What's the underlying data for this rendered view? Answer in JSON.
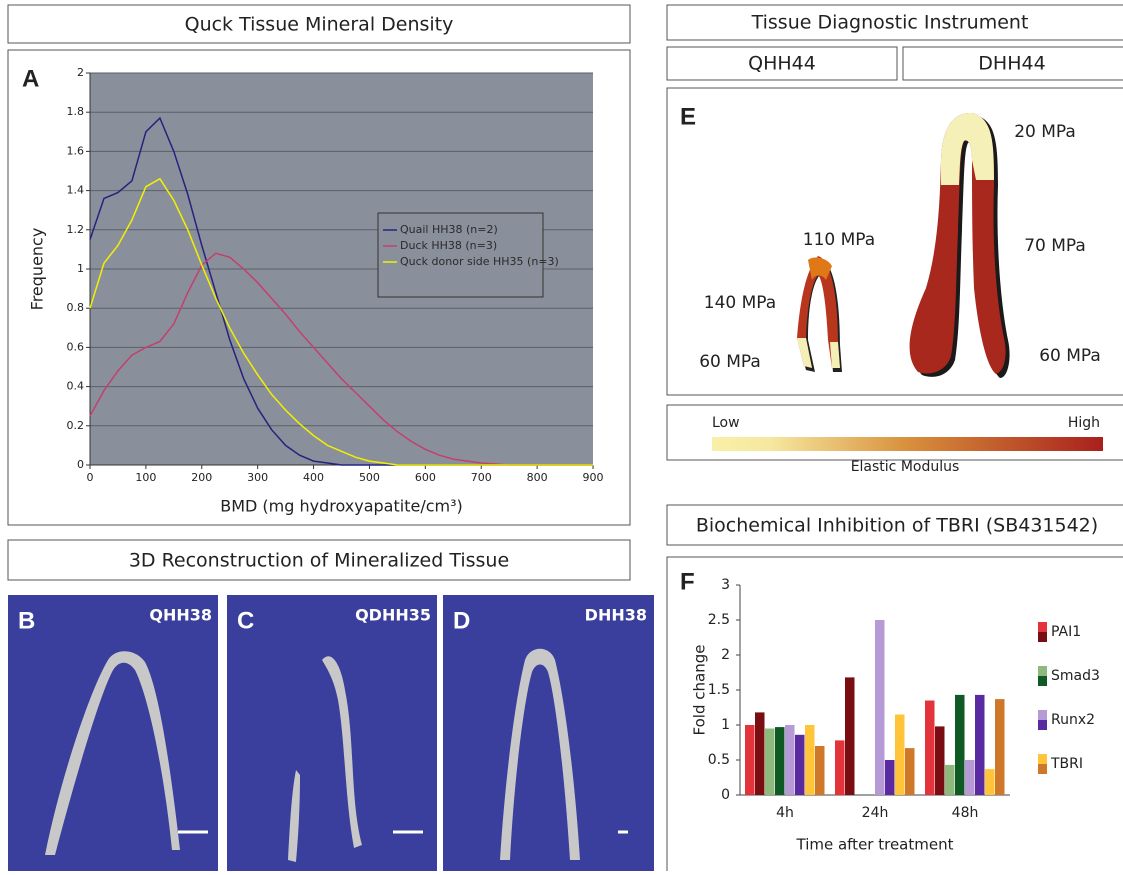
{
  "headers": {
    "density": "Quck Tissue Mineral Density",
    "reconstruction": "3D Reconstruction of Mineralized Tissue",
    "instrument": "Tissue Diagnostic Instrument",
    "instrument_columns": [
      "QHH44",
      "DHH44"
    ],
    "inhibition": "Biochemical Inhibition of TBRI (SB431542)"
  },
  "chart_data": [
    {
      "type": "line",
      "panel": "A",
      "x_label": "BMD (mg hydroxyapatite/cm³)",
      "y_label": "Frequency",
      "x": [
        0,
        25,
        50,
        75,
        100,
        125,
        150,
        175,
        200,
        225,
        250,
        275,
        300,
        325,
        350,
        375,
        400,
        425,
        450,
        475,
        500,
        525,
        550,
        575,
        600,
        625,
        650,
        675,
        700,
        725,
        750,
        775,
        800,
        825,
        850,
        875,
        900
      ],
      "series": [
        {
          "name": "Quail HH38 (n=2)",
          "color": "#24247e",
          "values": [
            1.15,
            1.36,
            1.39,
            1.45,
            1.7,
            1.77,
            1.6,
            1.38,
            1.12,
            0.88,
            0.64,
            0.44,
            0.29,
            0.18,
            0.1,
            0.05,
            0.02,
            0.01,
            0,
            0,
            0,
            0,
            0,
            0,
            0,
            0,
            0,
            0,
            0,
            0,
            0,
            0,
            0,
            0,
            0,
            0,
            0
          ]
        },
        {
          "name": "Duck HH38 (n=3)",
          "color": "#c2406c",
          "values": [
            0.25,
            0.38,
            0.48,
            0.56,
            0.6,
            0.63,
            0.72,
            0.88,
            1.02,
            1.08,
            1.06,
            1.0,
            0.93,
            0.85,
            0.77,
            0.68,
            0.6,
            0.52,
            0.44,
            0.37,
            0.3,
            0.23,
            0.17,
            0.12,
            0.08,
            0.05,
            0.03,
            0.02,
            0.01,
            0.005,
            0,
            0,
            0,
            0,
            0,
            0,
            0
          ]
        },
        {
          "name": "Quck donor side HH35 (n=3)",
          "color": "#f2f000",
          "values": [
            0.8,
            1.03,
            1.12,
            1.25,
            1.42,
            1.46,
            1.35,
            1.2,
            1.02,
            0.85,
            0.7,
            0.57,
            0.46,
            0.36,
            0.28,
            0.21,
            0.15,
            0.1,
            0.07,
            0.04,
            0.02,
            0.01,
            0,
            0,
            0,
            0,
            0,
            0,
            0,
            0,
            0,
            0,
            0,
            0,
            0,
            0,
            0
          ]
        }
      ],
      "xlim": [
        0,
        900
      ],
      "xticks": [
        0,
        100,
        200,
        300,
        400,
        500,
        600,
        700,
        800,
        900
      ],
      "ylim": [
        0,
        2
      ],
      "yticks": [
        0,
        0.2,
        0.4,
        0.6,
        0.8,
        1,
        1.2,
        1.4,
        1.6,
        1.8,
        2
      ],
      "grid": true
    },
    {
      "type": "grouped_bar",
      "panel": "F",
      "x_label": "Time after treatment",
      "y_label": "Fold change",
      "categories": [
        "4h",
        "24h",
        "48h"
      ],
      "groups": [
        {
          "name": "PAI1",
          "series": [
            {
              "color": "#e2343a",
              "values": [
                1.0,
                0.78,
                1.35
              ]
            },
            {
              "color": "#7a0d12",
              "values": [
                1.18,
                1.68,
                0.98
              ]
            }
          ]
        },
        {
          "name": "Smad3",
          "series": [
            {
              "color": "#8dba7c",
              "values": [
                0.95,
                null,
                0.43
              ]
            },
            {
              "color": "#0f5a24",
              "values": [
                0.97,
                null,
                1.43
              ]
            }
          ]
        },
        {
          "name": "Runx2",
          "series": [
            {
              "color": "#b59ad6",
              "values": [
                1.0,
                2.5,
                0.5
              ]
            },
            {
              "color": "#5a2aa0",
              "values": [
                0.86,
                0.5,
                1.43
              ]
            }
          ]
        },
        {
          "name": "TBRI",
          "series": [
            {
              "color": "#ffc43a",
              "values": [
                1.0,
                1.15,
                0.37
              ]
            },
            {
              "color": "#d0782a",
              "values": [
                0.7,
                0.67,
                1.37
              ]
            }
          ]
        }
      ],
      "ylim": [
        0,
        3
      ],
      "yticks": [
        0,
        0.5,
        1,
        1.5,
        2,
        2.5,
        3
      ]
    }
  ],
  "reconstructions": [
    {
      "panel": "B",
      "label": "QHH38"
    },
    {
      "panel": "C",
      "label": "QDHH35"
    },
    {
      "panel": "D",
      "label": "DHH38"
    }
  ],
  "elastic_modulus": {
    "panel": "E",
    "labels": [
      "110 MPa",
      "140 MPa",
      "60 MPa",
      "20 MPa",
      "70 MPa",
      "60 MPa"
    ],
    "scale": {
      "low": "Low",
      "high": "High",
      "title": "Elastic Modulus"
    }
  }
}
